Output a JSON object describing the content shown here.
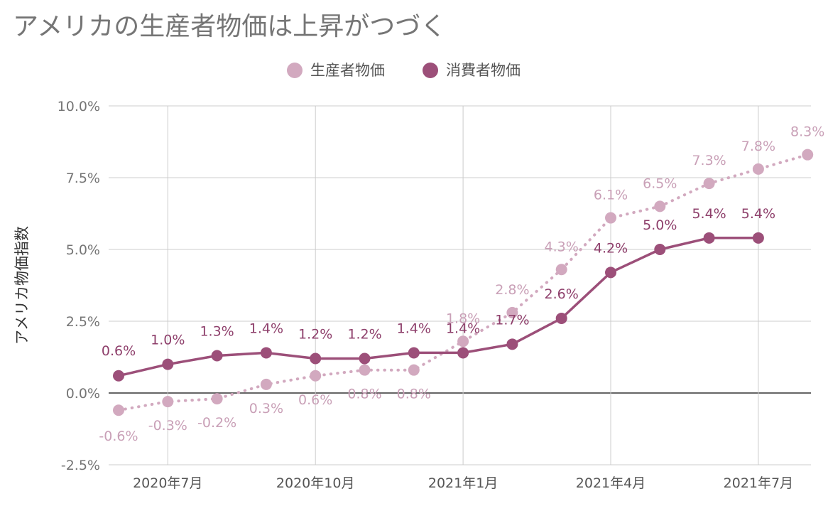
{
  "chart_data": {
    "type": "line",
    "title": "アメリカの生産者物価は上昇がつづく",
    "ylabel": "アメリカ物価指数",
    "xlabel": "",
    "x": [
      "2020-06",
      "2020-07",
      "2020-08",
      "2020-09",
      "2020-10",
      "2020-11",
      "2020-12",
      "2021-01",
      "2021-02",
      "2021-03",
      "2021-04",
      "2021-05",
      "2021-06",
      "2021-07",
      "2021-08"
    ],
    "x_tick_labels": [
      {
        "x": "2020-07",
        "label": "2020年7月"
      },
      {
        "x": "2020-10",
        "label": "2020年10月"
      },
      {
        "x": "2021-01",
        "label": "2021年1月"
      },
      {
        "x": "2021-04",
        "label": "2021年4月"
      },
      {
        "x": "2021-07",
        "label": "2021年7月"
      }
    ],
    "ylim": [
      -2.5,
      10.0
    ],
    "y_ticks": [
      -2.5,
      0,
      2.5,
      5,
      7.5,
      10
    ],
    "y_tick_labels": [
      "-2.5%",
      "0.0%",
      "2.5%",
      "5.0%",
      "7.5%",
      "10.0%"
    ],
    "grid": true,
    "legend_position": "top",
    "series": [
      {
        "name": "生産者物価",
        "color": "#d2a9bf",
        "line_style": "dotted",
        "values": [
          -0.6,
          -0.3,
          -0.2,
          0.3,
          0.6,
          0.8,
          0.8,
          1.8,
          2.8,
          4.3,
          6.1,
          6.5,
          7.3,
          7.8,
          8.3
        ],
        "labels": [
          "-0.6%",
          "-0.3%",
          "-0.2%",
          "0.3%",
          "0.6%",
          "0.8%",
          "0.8%",
          "1.8%",
          "2.8%",
          "4.3%",
          "6.1%",
          "6.5%",
          "7.3%",
          "7.8%",
          "8.3%"
        ]
      },
      {
        "name": "消費者物価",
        "color": "#9c4f79",
        "line_style": "solid",
        "values": [
          0.6,
          1.0,
          1.3,
          1.4,
          1.2,
          1.2,
          1.4,
          1.4,
          1.7,
          2.6,
          4.2,
          5.0,
          5.4,
          5.4,
          null
        ],
        "labels": [
          "0.6%",
          "1.0%",
          "1.3%",
          "1.4%",
          "1.2%",
          "1.2%",
          "1.4%",
          "1.4%",
          "1.7%",
          "2.6%",
          "4.2%",
          "5.0%",
          "5.4%",
          "5.4%",
          null
        ]
      }
    ]
  }
}
